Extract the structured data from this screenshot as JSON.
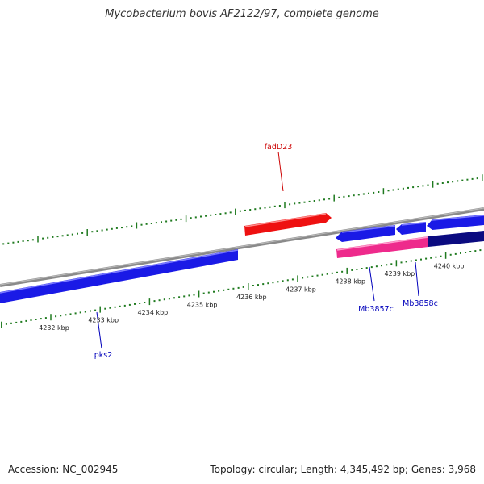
{
  "title": "Mycobacterium bovis AF2122/97, complete genome",
  "footer": {
    "accession": "Accession: NC_002945",
    "summary": "Topology: circular; Length: 4,345,492 bp; Genes: 3,968"
  },
  "colors": {
    "backbone": "#8a8a8a",
    "tick": "#1f7a1f",
    "forward_gene": "#ee1111",
    "reverse_gene": "#1a1ae6",
    "pink_gene": "#ee2a8c",
    "dark_gene": "#0b0b80",
    "forward_label": "#cc0000",
    "reverse_label": "#0000bb"
  },
  "ticks": [
    {
      "label": "4232 kbp"
    },
    {
      "label": "4233 kbp"
    },
    {
      "label": "4234 kbp"
    },
    {
      "label": "4235 kbp"
    },
    {
      "label": "4236 kbp"
    },
    {
      "label": "4237 kbp"
    },
    {
      "label": "4238 kbp"
    },
    {
      "label": "4239 kbp"
    },
    {
      "label": "4240 kbp"
    }
  ],
  "genes": [
    {
      "name": "pks2",
      "strand": "reverse"
    },
    {
      "name": "fadD23",
      "strand": "forward"
    },
    {
      "name": "Mb3857c",
      "strand": "reverse"
    },
    {
      "name": "Mb3858c",
      "strand": "reverse"
    }
  ]
}
